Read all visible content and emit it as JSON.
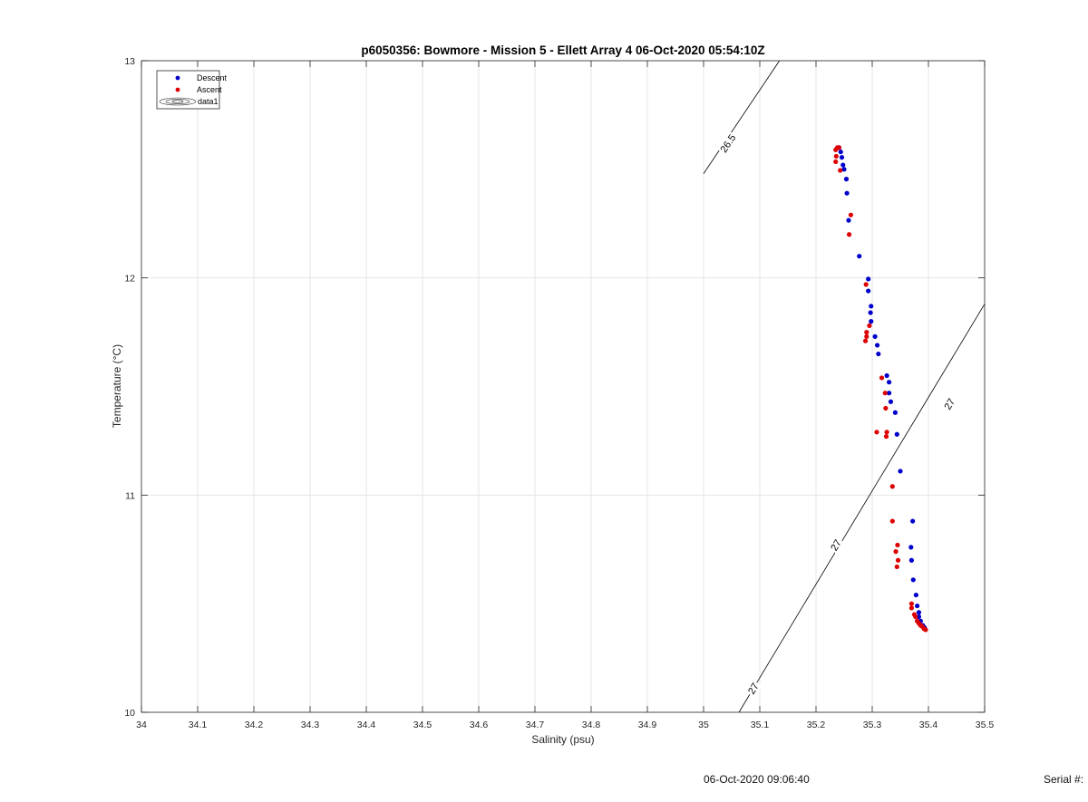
{
  "chart_data": {
    "type": "scatter",
    "title": "p6050356: Bowmore - Mission 5 - Ellett Array 4 06-Oct-2020 05:54:10Z",
    "xlabel": "Salinity (psu)",
    "ylabel": "Temperature (°C)",
    "xlim": [
      34,
      35.5
    ],
    "ylim": [
      10,
      13
    ],
    "xticks": [
      "34",
      "34.1",
      "34.2",
      "34.3",
      "34.4",
      "34.5",
      "34.6",
      "34.7",
      "34.8",
      "34.9",
      "35",
      "35.1",
      "35.2",
      "35.3",
      "35.4",
      "35.5"
    ],
    "yticks": [
      "10",
      "11",
      "12",
      "13"
    ],
    "grid": true,
    "legend_position": "top-left",
    "legend": [
      "Descent",
      "Ascent",
      "data1"
    ],
    "series": [
      {
        "name": "Descent",
        "color": "#0000cc",
        "points": [
          [
            35.241,
            12.6
          ],
          [
            35.244,
            12.58
          ],
          [
            35.246,
            12.555
          ],
          [
            35.248,
            12.52
          ],
          [
            35.25,
            12.5
          ],
          [
            35.254,
            12.455
          ],
          [
            35.255,
            12.39
          ],
          [
            35.258,
            12.265
          ],
          [
            35.277,
            12.1
          ],
          [
            35.293,
            11.995
          ],
          [
            35.293,
            11.94
          ],
          [
            35.298,
            11.87
          ],
          [
            35.297,
            11.84
          ],
          [
            35.298,
            11.8
          ],
          [
            35.305,
            11.73
          ],
          [
            35.309,
            11.69
          ],
          [
            35.311,
            11.65
          ],
          [
            35.326,
            11.55
          ],
          [
            35.33,
            11.52
          ],
          [
            35.33,
            11.47
          ],
          [
            35.333,
            11.43
          ],
          [
            35.341,
            11.38
          ],
          [
            35.344,
            11.28
          ],
          [
            35.35,
            11.11
          ],
          [
            35.372,
            10.88
          ],
          [
            35.369,
            10.76
          ],
          [
            35.37,
            10.7
          ],
          [
            35.373,
            10.61
          ],
          [
            35.378,
            10.54
          ],
          [
            35.38,
            10.49
          ],
          [
            35.383,
            10.46
          ],
          [
            35.383,
            10.44
          ],
          [
            35.386,
            10.42
          ],
          [
            35.39,
            10.4
          ],
          [
            35.393,
            10.39
          ]
        ]
      },
      {
        "name": "Ascent",
        "color": "#dd0000",
        "points": [
          [
            35.235,
            12.59
          ],
          [
            35.238,
            12.6
          ],
          [
            35.241,
            12.6
          ],
          [
            35.236,
            12.56
          ],
          [
            35.235,
            12.535
          ],
          [
            35.243,
            12.495
          ],
          [
            35.262,
            12.29
          ],
          [
            35.259,
            12.2
          ],
          [
            35.289,
            11.97
          ],
          [
            35.29,
            11.75
          ],
          [
            35.295,
            11.78
          ],
          [
            35.29,
            11.73
          ],
          [
            35.288,
            11.71
          ],
          [
            35.317,
            11.54
          ],
          [
            35.323,
            11.47
          ],
          [
            35.324,
            11.4
          ],
          [
            35.308,
            11.29
          ],
          [
            35.326,
            11.29
          ],
          [
            35.325,
            11.27
          ],
          [
            35.336,
            11.04
          ],
          [
            35.336,
            10.88
          ],
          [
            35.345,
            10.77
          ],
          [
            35.342,
            10.74
          ],
          [
            35.346,
            10.7
          ],
          [
            35.344,
            10.67
          ],
          [
            35.37,
            10.5
          ],
          [
            35.37,
            10.48
          ],
          [
            35.375,
            10.45
          ],
          [
            35.377,
            10.44
          ],
          [
            35.38,
            10.42
          ],
          [
            35.383,
            10.41
          ],
          [
            35.386,
            10.4
          ],
          [
            35.389,
            10.395
          ],
          [
            35.392,
            10.385
          ],
          [
            35.395,
            10.38
          ]
        ]
      }
    ],
    "contours": [
      {
        "label": "26.5",
        "color": "#000000",
        "segments": [
          [
            [
              35.0,
              12.48
            ],
            [
              35.135,
              13.0
            ]
          ]
        ],
        "label_positions": [
          [
            35.043,
            12.62
          ]
        ]
      },
      {
        "label": "27",
        "color": "#000000",
        "segments": [
          [
            [
              35.063,
              10.0
            ],
            [
              35.5,
              11.88
            ]
          ]
        ],
        "label_positions": [
          [
            35.088,
            10.11
          ],
          [
            35.235,
            10.77
          ],
          [
            35.437,
            11.42
          ]
        ]
      }
    ]
  },
  "footer": {
    "date": "06-Oct-2020 09:06:40",
    "serial": "Serial #:"
  }
}
